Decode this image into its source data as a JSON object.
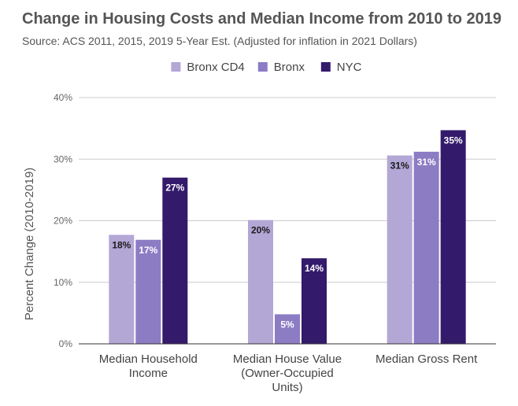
{
  "chart_data": {
    "type": "bar",
    "title": "Change in Housing Costs and Median Income from 2010 to 2019",
    "subtitle": "Source: ACS 2011, 2015, 2019 5-Year Est. (Adjusted for inflation in 2021 Dollars)",
    "ylabel": "Percent Change (2010-2019)",
    "xlabel": "",
    "ylim": [
      0,
      40
    ],
    "yticks": [
      0,
      10,
      20,
      30,
      40
    ],
    "ytick_labels": [
      "0%",
      "10%",
      "20%",
      "30%",
      "40%"
    ],
    "grid": true,
    "legend_position": "top-center",
    "categories": [
      [
        "Median Household",
        "Income"
      ],
      [
        "Median House Value",
        "(Owner-Occupied",
        "Units)"
      ],
      [
        "Median Gross Rent"
      ]
    ],
    "series": [
      {
        "name": "Bronx CD4",
        "color": "#b3a7d6",
        "label_color": "#1a1a1a",
        "values": [
          17.7,
          20.1,
          30.6
        ],
        "labels": [
          "18%",
          "20%",
          "31%"
        ]
      },
      {
        "name": "Bronx",
        "color": "#8b7cc4",
        "label_color": "#ffffff",
        "values": [
          16.9,
          4.8,
          31.2
        ],
        "labels": [
          "17%",
          "5%",
          "31%"
        ]
      },
      {
        "name": "NYC",
        "color": "#331a6b",
        "label_color": "#ffffff",
        "values": [
          27.0,
          13.9,
          34.7
        ],
        "labels": [
          "27%",
          "14%",
          "35%"
        ]
      }
    ]
  }
}
